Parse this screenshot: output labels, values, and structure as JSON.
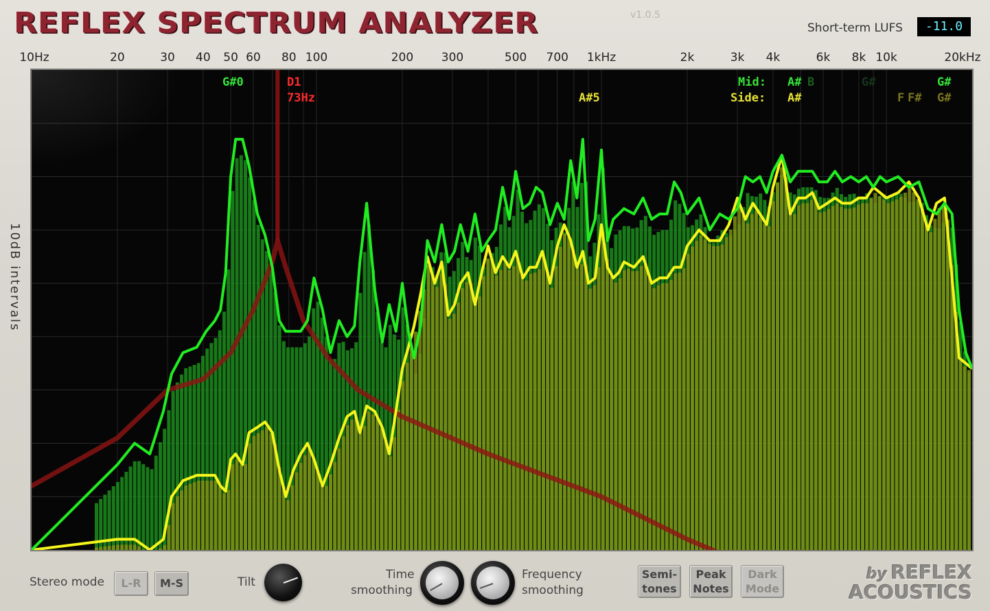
{
  "app": {
    "title": "REFLEX SPECTRUM ANALYZER",
    "version": "v1.0.5",
    "lufs_label": "Short-term LUFS",
    "lufs_value": "-11.0",
    "y_axis_label": "10dB intervals"
  },
  "freq_labels": [
    "10Hz",
    "20",
    "30",
    "40",
    "50",
    "60",
    "80",
    "100",
    "200",
    "300",
    "500",
    "700",
    "1kHz",
    "2k",
    "3k",
    "4k",
    "6k",
    "8k",
    "10k",
    "20kHz"
  ],
  "note_labels": {
    "g_sharp_0": "G#0",
    "d1": "D1",
    "d1_freq": "73Hz",
    "a_sharp_5": "A#5",
    "mid_label": "Mid:",
    "mid_a_sharp": "A#",
    "mid_b": "B",
    "mid_g_sharp_dim": "G#",
    "mid_g_sharp": "G#",
    "side_label": "Side:",
    "side_a_sharp": "A#",
    "side_f": "F",
    "side_f_sharp": "F#",
    "side_g_sharp": "G#"
  },
  "controls": {
    "stereo_mode_label": "Stereo mode",
    "lr_label": "L-R",
    "ms_label": "M-S",
    "tilt_label": "Tilt",
    "time_smoothing_line1": "Time",
    "time_smoothing_line2": "smoothing",
    "freq_smoothing_line1": "Frequency",
    "freq_smoothing_line2": "smoothing",
    "semitones_line1": "Semi-",
    "semitones_line2": "tones",
    "peak_notes_line1": "Peak",
    "peak_notes_line2": "Notes",
    "dark_mode_line1": "Dark",
    "dark_mode_line2": "Mode"
  },
  "brand": {
    "by": "by",
    "line1": "REFLEX",
    "line2": "ACOUSTICS"
  },
  "colors": {
    "mid": "#2bea2b",
    "side": "#f2f21a",
    "marker": "#a01616",
    "title": "#8e2430"
  },
  "chart_data": {
    "type": "area",
    "x_scale": "log",
    "xlim": [
      10,
      20000
    ],
    "y_interval_db": 10,
    "series": [
      {
        "name": "Mid",
        "x": [
          10,
          20,
          23,
          26,
          29,
          31,
          34,
          38,
          41,
          44,
          46,
          48,
          50,
          52,
          55,
          58,
          62,
          66,
          70,
          74,
          78,
          83,
          88,
          93,
          98,
          105,
          112,
          120,
          128,
          136,
          142,
          150,
          160,
          170,
          180,
          190,
          200,
          210,
          220,
          232,
          245,
          260,
          275,
          290,
          305,
          320,
          340,
          360,
          380,
          400,
          425,
          450,
          475,
          500,
          530,
          560,
          590,
          620,
          660,
          700,
          740,
          780,
          820,
          860,
          900,
          950,
          1000,
          1050,
          1100,
          1150,
          1200,
          1300,
          1400,
          1500,
          1600,
          1700,
          1800,
          1900,
          2000,
          2200,
          2400,
          2600,
          2800,
          3000,
          3200,
          3400,
          3600,
          3800,
          4000,
          4300,
          4600,
          4900,
          5200,
          5500,
          5800,
          6200,
          6600,
          7000,
          7500,
          8000,
          8500,
          9000,
          9500,
          10000,
          11000,
          12000,
          13000,
          14000,
          15000,
          16000,
          17000,
          18000,
          19000,
          20000
        ],
        "values": [
          -90,
          -74,
          -70,
          -72,
          -64,
          -57,
          -53,
          -52,
          -49,
          -47,
          -45,
          -38,
          -20,
          -13,
          -13,
          -18,
          -27,
          -31,
          -37,
          -47,
          -49,
          -49,
          -49,
          -47,
          -39,
          -45,
          -53,
          -47,
          -50,
          -48,
          -36,
          -25,
          -41,
          -51,
          -44,
          -49,
          -40,
          -49,
          -54,
          -48,
          -32,
          -36,
          -29,
          -36,
          -34,
          -29,
          -34,
          -27,
          -34,
          -32,
          -30,
          -22,
          -28,
          -19,
          -26,
          -25,
          -22,
          -23,
          -29,
          -25,
          -28,
          -17,
          -24,
          -13,
          -32,
          -28,
          -15,
          -32,
          -28,
          -27,
          -26,
          -27,
          -24,
          -28,
          -27,
          -27,
          -21,
          -23,
          -27,
          -24,
          -30,
          -27,
          -28,
          -26,
          -20,
          -21,
          -20,
          -23,
          -19,
          -16,
          -21,
          -19,
          -19,
          -19,
          -21,
          -21,
          -19,
          -21,
          -20,
          -21,
          -20,
          -22,
          -20,
          -21,
          -20,
          -22,
          -21,
          -26,
          -27,
          -25,
          -27,
          -45,
          -53,
          -56
        ]
      },
      {
        "name": "Side",
        "x": [
          10,
          20,
          23,
          26,
          29,
          31,
          34,
          38,
          41,
          44,
          46,
          48,
          50,
          52,
          55,
          58,
          62,
          66,
          70,
          74,
          78,
          83,
          88,
          93,
          98,
          105,
          112,
          120,
          128,
          136,
          142,
          150,
          160,
          170,
          180,
          190,
          200,
          210,
          220,
          232,
          245,
          260,
          275,
          290,
          305,
          320,
          340,
          360,
          380,
          400,
          425,
          450,
          475,
          500,
          530,
          560,
          590,
          620,
          660,
          700,
          740,
          780,
          820,
          860,
          900,
          950,
          1000,
          1050,
          1100,
          1150,
          1200,
          1300,
          1400,
          1500,
          1600,
          1700,
          1800,
          1900,
          2000,
          2200,
          2400,
          2600,
          2800,
          3000,
          3200,
          3400,
          3600,
          3800,
          4000,
          4300,
          4600,
          4900,
          5200,
          5500,
          5800,
          6200,
          6600,
          7000,
          7500,
          8000,
          8500,
          9000,
          9500,
          10000,
          11000,
          12000,
          13000,
          14000,
          15000,
          16000,
          17000,
          18000,
          19000,
          20000
        ],
        "values": [
          -90,
          -88,
          -88,
          -90,
          -88,
          -80,
          -77,
          -76,
          -76,
          -76,
          -78,
          -79,
          -73,
          -72,
          -74,
          -68,
          -67,
          -66,
          -68,
          -75,
          -80,
          -75,
          -72,
          -70,
          -73,
          -78,
          -74,
          -69,
          -65,
          -64,
          -68,
          -63,
          -64,
          -67,
          -72,
          -64,
          -56,
          -52,
          -48,
          -42,
          -35,
          -40,
          -36,
          -46,
          -44,
          -40,
          -38,
          -44,
          -38,
          -33,
          -38,
          -35,
          -37,
          -34,
          -39,
          -37,
          -37,
          -34,
          -40,
          -33,
          -29,
          -32,
          -37,
          -34,
          -40,
          -39,
          -29,
          -37,
          -39,
          -38,
          -36,
          -37,
          -35,
          -40,
          -39,
          -39,
          -37,
          -37,
          -33,
          -30,
          -32,
          -32,
          -29,
          -24,
          -28,
          -25,
          -27,
          -29,
          -22,
          -16,
          -27,
          -24,
          -24,
          -23,
          -26,
          -25,
          -24,
          -25,
          -25,
          -24,
          -24,
          -22,
          -23,
          -24,
          -23,
          -21,
          -24,
          -30,
          -25,
          -24,
          -39,
          -54,
          -55,
          -56
        ]
      },
      {
        "name": "Marker",
        "x": [
          10,
          20,
          30,
          40,
          50,
          60,
          70,
          73,
          78,
          90,
          110,
          140,
          200,
          400,
          1000,
          2000,
          3000
        ],
        "values": [
          -78,
          -69,
          -60,
          -58,
          -53,
          -45,
          -36,
          -32,
          -37,
          -47,
          -54,
          -60,
          -65,
          -72,
          -80,
          -88,
          -92
        ]
      }
    ]
  }
}
